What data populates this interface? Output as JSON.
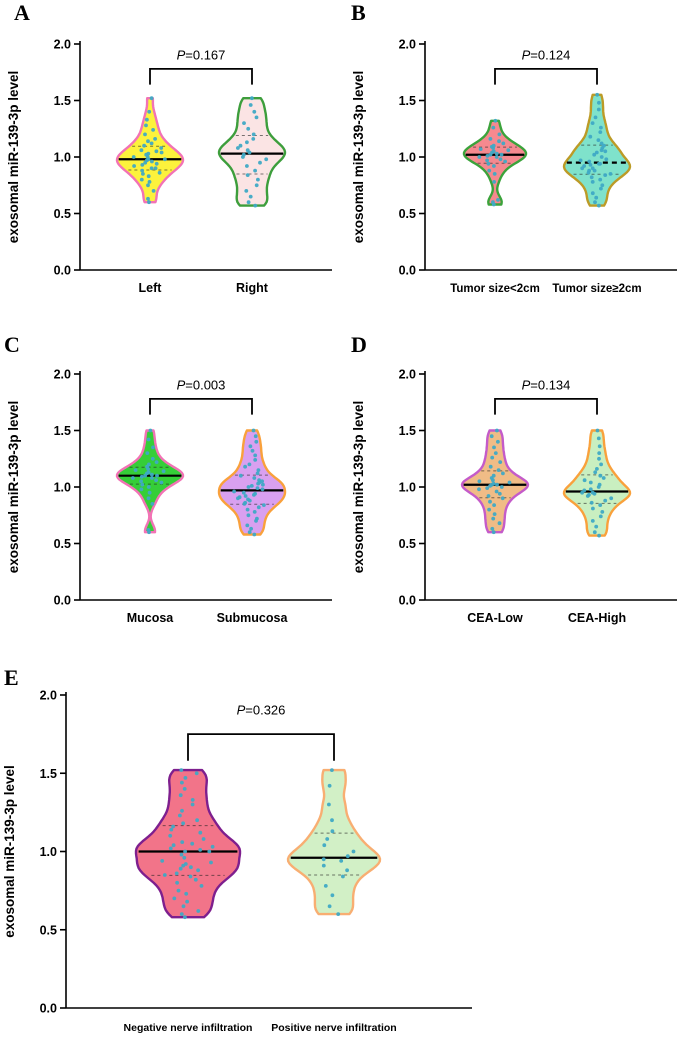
{
  "point_color": "#3FA9C5",
  "ylabel": "exosomal miR-139-3p level",
  "chart_data": [
    {
      "type": "violin",
      "panel": "A",
      "p_label": "P=0.167",
      "ylabel": "exosomal miR-139-3p level",
      "ylim": [
        0,
        2
      ],
      "yticks": [
        0,
        0.5,
        1,
        1.5,
        2
      ],
      "groups": [
        {
          "label": "Left",
          "fill": "#FCF23C",
          "outline": "#F273B5",
          "median": 0.98,
          "values": [
            0.6,
            0.63,
            0.7,
            0.75,
            0.78,
            0.8,
            0.83,
            0.85,
            0.86,
            0.88,
            0.9,
            0.9,
            0.92,
            0.93,
            0.94,
            0.95,
            0.96,
            0.97,
            0.98,
            0.98,
            1.0,
            1.0,
            1.02,
            1.03,
            1.04,
            1.05,
            1.06,
            1.08,
            1.1,
            1.12,
            1.14,
            1.16,
            1.2,
            1.24,
            1.28,
            1.33,
            1.4,
            1.52
          ]
        },
        {
          "label": "Right",
          "fill": "#FBE4E4",
          "outline": "#3D9E3C",
          "median": 1.03,
          "values": [
            0.57,
            0.6,
            0.65,
            0.7,
            0.75,
            0.8,
            0.84,
            0.88,
            0.92,
            0.95,
            0.98,
            1.0,
            1.02,
            1.04,
            1.06,
            1.08,
            1.1,
            1.13,
            1.16,
            1.2,
            1.25,
            1.3,
            1.35,
            1.4,
            1.46,
            1.52
          ]
        }
      ]
    },
    {
      "type": "violin",
      "panel": "B",
      "p_label": "P=0.124",
      "ylabel": "exosomal miR-139-3p level",
      "ylim": [
        0,
        2
      ],
      "yticks": [
        0,
        0.5,
        1,
        1.5,
        2
      ],
      "groups": [
        {
          "label": "Tumor size<2cm",
          "fill": "#F5898F",
          "outline": "#3BA33B",
          "median": 1.02,
          "values": [
            0.58,
            0.6,
            0.62,
            0.78,
            0.85,
            0.88,
            0.92,
            0.94,
            0.96,
            0.97,
            0.98,
            1.0,
            1.0,
            1.01,
            1.02,
            1.02,
            1.03,
            1.04,
            1.05,
            1.06,
            1.07,
            1.08,
            1.09,
            1.1,
            1.12,
            1.14,
            1.16,
            1.2,
            1.26,
            1.32
          ]
        },
        {
          "label": "Tumor size≥2cm",
          "fill": "#7FE2CB",
          "outline": "#BC9B27",
          "median": 0.95,
          "median_dashed": true,
          "values": [
            0.57,
            0.6,
            0.64,
            0.68,
            0.72,
            0.75,
            0.78,
            0.8,
            0.82,
            0.84,
            0.85,
            0.86,
            0.88,
            0.88,
            0.9,
            0.9,
            0.92,
            0.93,
            0.94,
            0.94,
            0.96,
            0.97,
            0.98,
            1.0,
            1.02,
            1.04,
            1.05,
            1.06,
            1.08,
            1.1,
            1.12,
            1.15,
            1.18,
            1.22,
            1.26,
            1.3,
            1.35,
            1.42,
            1.48,
            1.55
          ]
        }
      ]
    },
    {
      "type": "violin",
      "panel": "C",
      "p_label": "P=0.003",
      "ylabel": "exosomal miR-139-3p level",
      "ylim": [
        0,
        2
      ],
      "yticks": [
        0,
        0.5,
        1,
        1.5,
        2
      ],
      "groups": [
        {
          "label": "Mucosa",
          "fill": "#35CE38",
          "outline": "#F273B5",
          "median": 1.1,
          "values": [
            0.6,
            0.62,
            0.85,
            0.9,
            0.95,
            0.98,
            1.0,
            1.02,
            1.04,
            1.05,
            1.06,
            1.08,
            1.08,
            1.09,
            1.1,
            1.1,
            1.11,
            1.12,
            1.13,
            1.14,
            1.15,
            1.16,
            1.18,
            1.2,
            1.22,
            1.25,
            1.3,
            1.35,
            1.42,
            1.5
          ]
        },
        {
          "label": "Submucosa",
          "fill": "#D9A0F0",
          "outline": "#F9A13C",
          "median": 0.97,
          "values": [
            0.58,
            0.6,
            0.63,
            0.66,
            0.7,
            0.72,
            0.75,
            0.78,
            0.8,
            0.82,
            0.84,
            0.85,
            0.86,
            0.88,
            0.89,
            0.9,
            0.91,
            0.92,
            0.93,
            0.94,
            0.95,
            0.96,
            0.98,
            0.99,
            1.0,
            1.01,
            1.02,
            1.03,
            1.04,
            1.05,
            1.06,
            1.08,
            1.1,
            1.12,
            1.15,
            1.18,
            1.2,
            1.24,
            1.28,
            1.32,
            1.36,
            1.4,
            1.45,
            1.5
          ]
        }
      ]
    },
    {
      "type": "violin",
      "panel": "D",
      "p_label": "P=0.134",
      "ylabel": "exosomal miR-139-3p level",
      "ylim": [
        0,
        2
      ],
      "yticks": [
        0,
        0.5,
        1,
        1.5,
        2
      ],
      "groups": [
        {
          "label": "CEA-Low",
          "fill": "#F0BC86",
          "outline": "#C45BC9",
          "median": 1.02,
          "values": [
            0.6,
            0.63,
            0.68,
            0.72,
            0.76,
            0.8,
            0.84,
            0.87,
            0.9,
            0.92,
            0.94,
            0.96,
            0.98,
            0.99,
            1.0,
            1.01,
            1.02,
            1.02,
            1.03,
            1.04,
            1.05,
            1.06,
            1.08,
            1.1,
            1.12,
            1.15,
            1.18,
            1.22,
            1.26,
            1.3,
            1.35,
            1.4,
            1.45,
            1.5
          ]
        },
        {
          "label": "CEA-High",
          "fill": "#C9EFC0",
          "outline": "#F9A13C",
          "median": 0.96,
          "values": [
            0.57,
            0.6,
            0.65,
            0.7,
            0.74,
            0.78,
            0.81,
            0.84,
            0.86,
            0.88,
            0.9,
            0.92,
            0.93,
            0.94,
            0.95,
            0.95,
            0.97,
            0.98,
            1.0,
            1.02,
            1.04,
            1.06,
            1.08,
            1.1,
            1.13,
            1.16,
            1.2,
            1.25,
            1.3,
            1.36,
            1.43,
            1.5
          ]
        }
      ]
    },
    {
      "type": "violin",
      "panel": "E",
      "p_label": "P=0.326",
      "ylabel": "exosomal miR-139-3p level",
      "ylim": [
        0,
        2
      ],
      "yticks": [
        0,
        0.5,
        1,
        1.5,
        2
      ],
      "groups": [
        {
          "label": "Negative nerve infiltration",
          "fill": "#F27489",
          "outline": "#7E1F8E",
          "median": 1.0,
          "values": [
            0.58,
            0.6,
            0.62,
            0.65,
            0.68,
            0.7,
            0.73,
            0.75,
            0.78,
            0.8,
            0.82,
            0.84,
            0.85,
            0.86,
            0.88,
            0.89,
            0.9,
            0.91,
            0.92,
            0.93,
            0.94,
            0.96,
            0.98,
            1.0,
            1.0,
            1.01,
            1.02,
            1.03,
            1.04,
            1.05,
            1.06,
            1.08,
            1.1,
            1.12,
            1.14,
            1.16,
            1.18,
            1.2,
            1.23,
            1.26,
            1.3,
            1.33,
            1.36,
            1.4,
            1.44,
            1.47,
            1.5,
            1.52
          ]
        },
        {
          "label": "Positive nerve infiltration",
          "fill": "#D2F0C6",
          "outline": "#F8AE72",
          "median": 0.96,
          "values": [
            0.6,
            0.65,
            0.72,
            0.78,
            0.84,
            0.88,
            0.91,
            0.94,
            0.95,
            0.97,
            1.0,
            1.04,
            1.08,
            1.13,
            1.2,
            1.3,
            1.42,
            1.52
          ]
        }
      ]
    }
  ]
}
